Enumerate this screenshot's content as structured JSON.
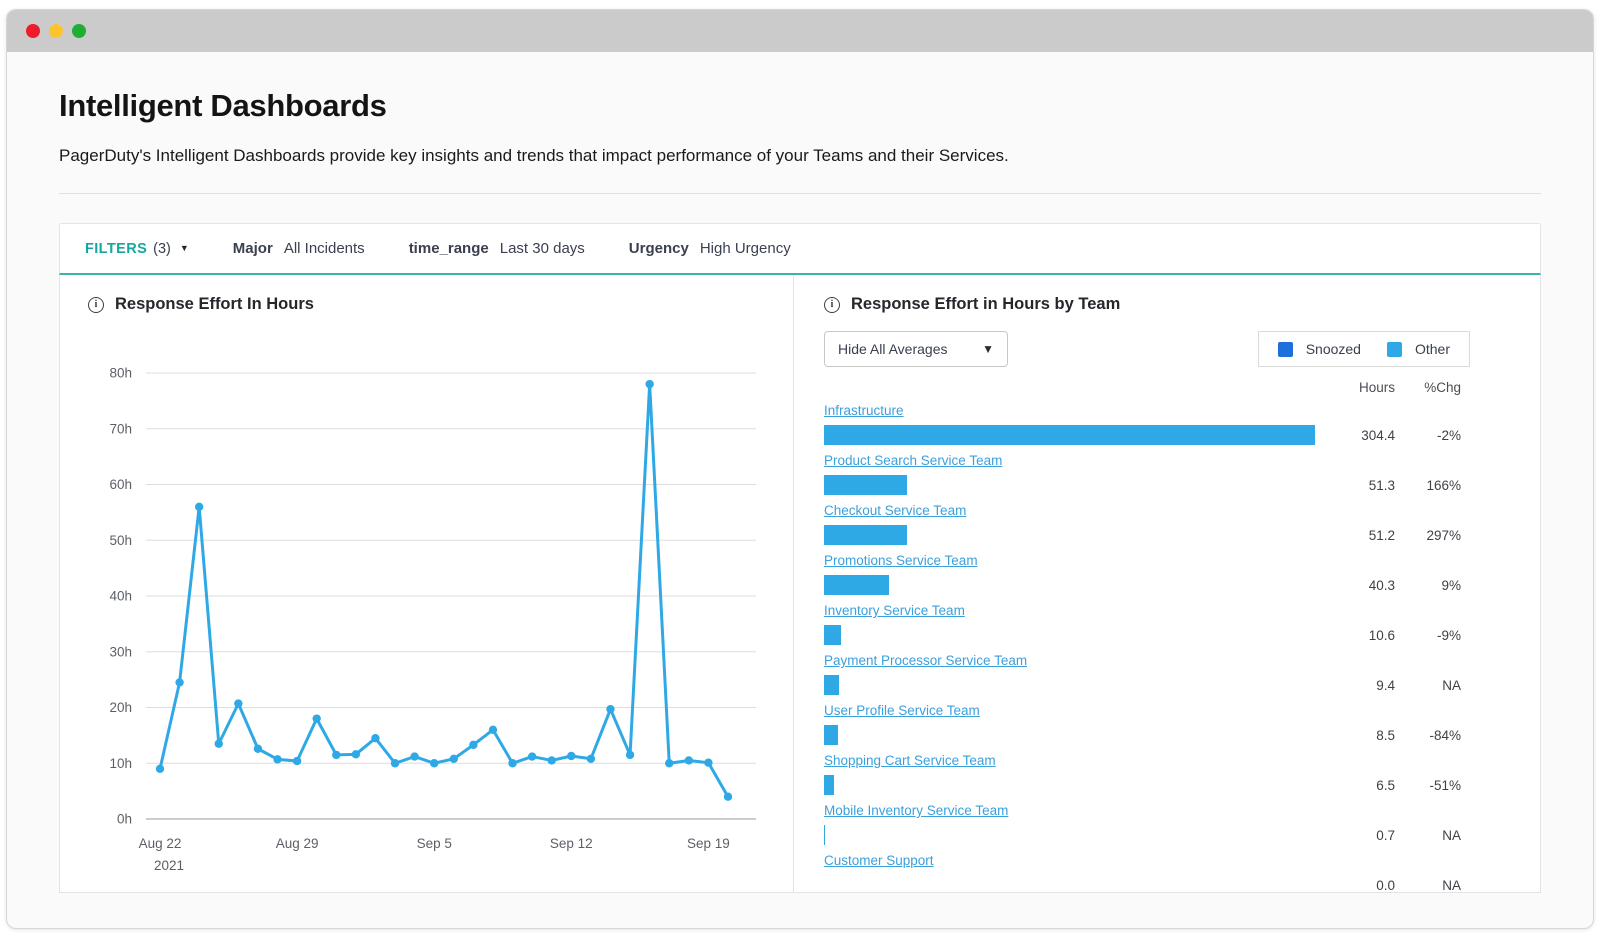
{
  "header": {
    "title": "Intelligent Dashboards",
    "subtitle": "PagerDuty's Intelligent Dashboards provide key insights and trends that impact performance of your Teams and their Services."
  },
  "filters": {
    "label": "FILTERS",
    "count": "(3)",
    "items": [
      {
        "name": "Major",
        "value": "All Incidents"
      },
      {
        "name": "time_range",
        "value": "Last 30 days"
      },
      {
        "name": "Urgency",
        "value": "High Urgency"
      }
    ]
  },
  "right_panel": {
    "dropdown_value": "Hide All Averages"
  },
  "chart_data": [
    {
      "type": "line",
      "title": "Response Effort In Hours",
      "xlabel": "",
      "ylabel": "",
      "ylim": [
        0,
        80
      ],
      "ytick_step": 10,
      "ytick_suffix": "h",
      "grid": true,
      "line_color": "#2fa9e6",
      "x": [
        "Aug 22",
        "Aug 23",
        "Aug 24",
        "Aug 25",
        "Aug 26",
        "Aug 27",
        "Aug 28",
        "Aug 29",
        "Aug 30",
        "Aug 31",
        "Sep 1",
        "Sep 2",
        "Sep 3",
        "Sep 4",
        "Sep 5",
        "Sep 6",
        "Sep 7",
        "Sep 8",
        "Sep 9",
        "Sep 10",
        "Sep 11",
        "Sep 12",
        "Sep 13",
        "Sep 14",
        "Sep 15",
        "Sep 16",
        "Sep 17",
        "Sep 18",
        "Sep 19",
        "Sep 20"
      ],
      "values": [
        9,
        24.5,
        56,
        13.5,
        20.7,
        12.6,
        10.7,
        10.4,
        18,
        11.5,
        11.6,
        14.5,
        10,
        11.2,
        10,
        10.8,
        13.3,
        16,
        10,
        11.2,
        10.5,
        11.3,
        10.8,
        19.7,
        11.5,
        78,
        10,
        10.5,
        10.1,
        4
      ],
      "xticks": [
        {
          "index": 0,
          "label": "Aug 22",
          "sub": "2021"
        },
        {
          "index": 7,
          "label": "Aug 29"
        },
        {
          "index": 14,
          "label": "Sep 5"
        },
        {
          "index": 21,
          "label": "Sep 12"
        },
        {
          "index": 28,
          "label": "Sep 19"
        }
      ]
    },
    {
      "type": "bar",
      "orientation": "horizontal",
      "title": "Response Effort in Hours by Team",
      "legend_position": "top-right",
      "legend": [
        {
          "label": "Snoozed",
          "color": "#1d6fdc"
        },
        {
          "label": "Other",
          "color": "#2fa9e6"
        }
      ],
      "columns": {
        "hours": "Hours",
        "pct": "%Chg"
      },
      "categories": [
        "Infrastructure",
        "Product Search Service Team",
        "Checkout Service Team",
        "Promotions Service Team",
        "Inventory Service Team",
        "Payment Processor Service Team",
        "User Profile Service Team",
        "Shopping Cart Service Team",
        "Mobile Inventory Service Team",
        "Customer Support"
      ],
      "values": [
        304.4,
        51.3,
        51.2,
        40.3,
        10.6,
        9.4,
        8.5,
        6.5,
        0.7,
        0.0
      ],
      "hours_labels": [
        "304.4",
        "51.3",
        "51.2",
        "40.3",
        "10.6",
        "9.4",
        "8.5",
        "6.5",
        "0.7",
        "0.0"
      ],
      "pct_change_labels": [
        "-2%",
        "166%",
        "297%",
        "9%",
        "-9%",
        "NA",
        "-84%",
        "-51%",
        "NA",
        "NA"
      ],
      "xmax": 304.4,
      "bar_color": "#2fa9e6"
    }
  ],
  "colors": {
    "teal": "#16a79c",
    "teal_border": "#3db3a8",
    "link_blue": "#3ba0dc",
    "bar_blue": "#2fa9e6",
    "snoozed_blue": "#1d6fdc",
    "tl_red": "#ec1c28",
    "tl_yellow": "#fbc430",
    "tl_green": "#1fae33"
  }
}
